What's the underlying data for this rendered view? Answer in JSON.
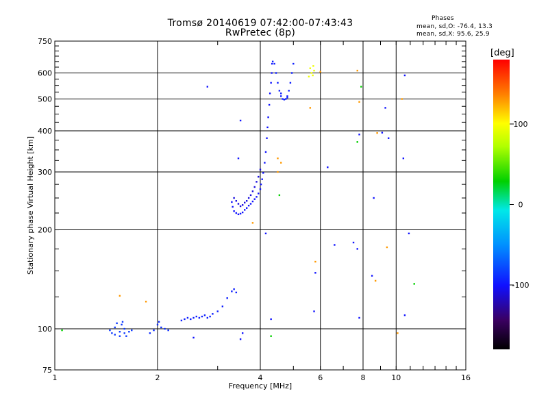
{
  "title_line1": "Tromsø 20140619 07:42:00-07:43:43",
  "title_line2": "RwPretec (8p)",
  "stats": {
    "heading": "Phases",
    "o_line": "mean, sd,O: -76.4, 13.3",
    "x_line": "mean, sd,X:  95.6, 25.9"
  },
  "colorbar": {
    "label": "[deg]",
    "tick_labels": [
      "100",
      "0",
      "-100"
    ],
    "tick_values": [
      100,
      0,
      -100
    ],
    "range": [
      -180,
      180
    ]
  },
  "chart_data": {
    "type": "scatter",
    "xlabel": "Frequency [MHz]",
    "ylabel": "Stationary phase Virtual Height [km]",
    "xscale": "log",
    "yscale": "log",
    "xlim": [
      1,
      16
    ],
    "ylim": [
      75,
      750
    ],
    "xticks": [
      1,
      2,
      4,
      6,
      8,
      10,
      16
    ],
    "xtick_labels": [
      "1",
      "2",
      "4",
      "6",
      "8",
      "10",
      "16"
    ],
    "yticks": [
      75,
      100,
      200,
      300,
      400,
      500,
      600,
      750
    ],
    "ytick_labels": [
      "75",
      "100",
      "200",
      "300",
      "400",
      "500",
      "600",
      "750"
    ],
    "grid": true,
    "point_groups": [
      {
        "name": "",
        "phase": -85,
        "points": [
          [
            1.45,
            99
          ],
          [
            1.47,
            97
          ],
          [
            1.5,
            101
          ],
          [
            1.52,
            104
          ],
          [
            1.55,
            98
          ],
          [
            1.57,
            103
          ],
          [
            1.6,
            97
          ],
          [
            1.62,
            95
          ],
          [
            1.65,
            98
          ],
          [
            1.68,
            99
          ],
          [
            1.5,
            96
          ],
          [
            1.55,
            95
          ],
          [
            1.6,
            100
          ],
          [
            1.58,
            105
          ]
        ]
      },
      {
        "name": "",
        "phase": -90,
        "points": [
          [
            1.9,
            97
          ],
          [
            1.95,
            99
          ],
          [
            2.0,
            103
          ],
          [
            2.02,
            105
          ],
          [
            2.05,
            101
          ],
          [
            2.1,
            100
          ],
          [
            2.15,
            99
          ]
        ]
      },
      {
        "name": "",
        "phase": -95,
        "points": [
          [
            2.35,
            106
          ],
          [
            2.4,
            107
          ],
          [
            2.45,
            108
          ],
          [
            2.5,
            107
          ],
          [
            2.55,
            108
          ],
          [
            2.6,
            109
          ],
          [
            2.65,
            108
          ],
          [
            2.7,
            109
          ],
          [
            2.75,
            110
          ],
          [
            2.8,
            108
          ],
          [
            2.85,
            109
          ],
          [
            2.9,
            111
          ],
          [
            3.0,
            113
          ],
          [
            3.1,
            117
          ],
          [
            3.2,
            124
          ],
          [
            3.3,
            130
          ],
          [
            3.35,
            132
          ],
          [
            3.4,
            129
          ]
        ]
      },
      {
        "name": "",
        "phase": -100,
        "points": [
          [
            3.3,
            243
          ],
          [
            3.32,
            235
          ],
          [
            3.35,
            228
          ],
          [
            3.4,
            225
          ],
          [
            3.45,
            223
          ],
          [
            3.5,
            224
          ],
          [
            3.55,
            226
          ],
          [
            3.6,
            230
          ],
          [
            3.65,
            233
          ],
          [
            3.7,
            237
          ],
          [
            3.75,
            240
          ],
          [
            3.8,
            244
          ],
          [
            3.85,
            248
          ],
          [
            3.9,
            252
          ],
          [
            3.95,
            258
          ],
          [
            4.0,
            266
          ],
          [
            4.02,
            275
          ],
          [
            4.05,
            285
          ],
          [
            4.08,
            298
          ],
          [
            4.12,
            320
          ],
          [
            4.15,
            345
          ],
          [
            4.18,
            380
          ],
          [
            4.2,
            410
          ],
          [
            4.22,
            440
          ],
          [
            4.25,
            480
          ],
          [
            4.27,
            520
          ],
          [
            4.3,
            560
          ],
          [
            4.32,
            600
          ],
          [
            4.33,
            640
          ]
        ]
      },
      {
        "name": "",
        "phase": -110,
        "points": [
          [
            3.35,
            250
          ],
          [
            3.4,
            245
          ],
          [
            3.45,
            240
          ],
          [
            3.5,
            236
          ],
          [
            3.55,
            238
          ],
          [
            3.6,
            242
          ],
          [
            3.65,
            245
          ],
          [
            3.7,
            250
          ],
          [
            3.75,
            255
          ],
          [
            3.8,
            262
          ],
          [
            3.85,
            270
          ],
          [
            3.9,
            280
          ],
          [
            3.95,
            290
          ],
          [
            4.0,
            305
          ]
        ]
      },
      {
        "name": "",
        "phase": -95,
        "points": [
          [
            4.4,
            640
          ],
          [
            4.45,
            600
          ],
          [
            4.5,
            560
          ],
          [
            4.55,
            530
          ],
          [
            4.6,
            510
          ],
          [
            4.65,
            500
          ],
          [
            4.7,
            498
          ],
          [
            4.75,
            500
          ],
          [
            4.8,
            510
          ],
          [
            4.85,
            530
          ],
          [
            4.9,
            560
          ],
          [
            4.95,
            600
          ],
          [
            5.0,
            640
          ],
          [
            4.35,
            650
          ],
          [
            4.6,
            520
          ],
          [
            4.8,
            505
          ]
        ]
      },
      {
        "name": "",
        "phase": 95,
        "points": [
          [
            5.6,
            620
          ],
          [
            5.65,
            600
          ],
          [
            5.7,
            590
          ],
          [
            5.75,
            610
          ],
          [
            5.55,
            585
          ],
          [
            5.72,
            630
          ]
        ]
      },
      {
        "name": "",
        "phase": -100,
        "points": [
          [
            2.8,
            545
          ],
          [
            3.5,
            430
          ],
          [
            3.45,
            330
          ],
          [
            4.15,
            195
          ],
          [
            4.3,
            107
          ],
          [
            5.75,
            113
          ],
          [
            5.8,
            148
          ],
          [
            6.3,
            310
          ],
          [
            6.6,
            180
          ],
          [
            7.5,
            183
          ],
          [
            7.7,
            175
          ],
          [
            7.8,
            108
          ],
          [
            7.8,
            390
          ],
          [
            8.5,
            145
          ],
          [
            8.6,
            250
          ],
          [
            9.3,
            470
          ],
          [
            9.1,
            395
          ],
          [
            9.5,
            380
          ],
          [
            10.6,
            590
          ],
          [
            10.5,
            330
          ],
          [
            10.6,
            110
          ],
          [
            10.9,
            195
          ],
          [
            3.5,
            93
          ],
          [
            3.55,
            97
          ],
          [
            2.55,
            94
          ]
        ]
      },
      {
        "name": "",
        "phase": 30,
        "points": [
          [
            1.05,
            99
          ],
          [
            4.3,
            95
          ],
          [
            7.7,
            370
          ],
          [
            7.9,
            545
          ],
          [
            11.3,
            137
          ],
          [
            4.55,
            255
          ]
        ]
      },
      {
        "name": "",
        "phase": 130,
        "points": [
          [
            1.55,
            126
          ],
          [
            1.85,
            121
          ],
          [
            3.8,
            210
          ],
          [
            4.5,
            330
          ],
          [
            4.6,
            320
          ],
          [
            5.6,
            470
          ],
          [
            5.8,
            160
          ],
          [
            7.8,
            490
          ],
          [
            8.7,
            140
          ],
          [
            8.8,
            394
          ],
          [
            9.4,
            177
          ],
          [
            10.4,
            500
          ],
          [
            10.1,
            97
          ],
          [
            7.7,
            610
          ],
          [
            4.5,
            300
          ],
          [
            6.0,
            605
          ]
        ]
      }
    ]
  }
}
